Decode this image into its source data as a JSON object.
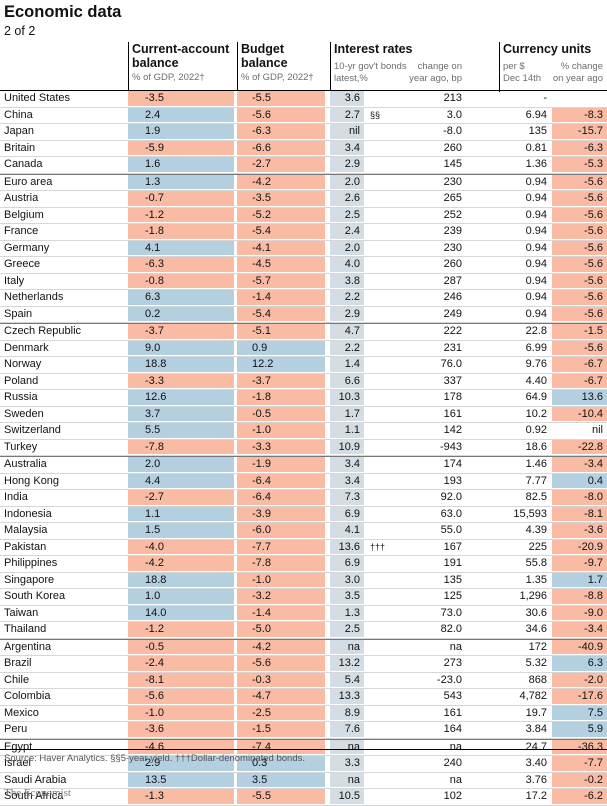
{
  "title": "Economic data",
  "subtitle": "2 of 2",
  "headers": {
    "current_account": "Current-account\nbalance",
    "current_account_sub": "% of GDP, 2022†",
    "budget": "Budget\nbalance",
    "budget_sub": "% of GDP, 2022†",
    "interest": "Interest rates",
    "interest_sub1": "10-yr gov't bonds",
    "interest_sub2": "latest,%",
    "interest_chg1": "change on",
    "interest_chg2": "year ago, bp",
    "currency": "Currency units",
    "currency_sub1": "per $",
    "currency_sub2": "Dec 14th",
    "currency_chg1": "% change",
    "currency_chg2": "on year ago"
  },
  "rows": [
    {
      "country": "United States",
      "ca": "-3.5",
      "bb": "-5.5",
      "ir": "3.6",
      "fn": "",
      "chg": "213",
      "fx": "-",
      "fxc": ""
    },
    {
      "country": "China",
      "ca": "2.4",
      "bb": "-5.6",
      "ir": "2.7",
      "fn": "§§",
      "chg": "3.0",
      "fx": "6.94",
      "fxc": "-8.3"
    },
    {
      "country": "Japan",
      "ca": "1.9",
      "bb": "-6.3",
      "ir": "nil",
      "fn": "",
      "chg": "-8.0",
      "fx": "135",
      "fxc": "-15.7"
    },
    {
      "country": "Britain",
      "ca": "-5.9",
      "bb": "-6.6",
      "ir": "3.4",
      "fn": "",
      "chg": "260",
      "fx": "0.81",
      "fxc": "-6.3"
    },
    {
      "country": "Canada",
      "ca": "1.6",
      "bb": "-2.7",
      "ir": "2.9",
      "fn": "",
      "chg": "145",
      "fx": "1.36",
      "fxc": "-5.3"
    },
    {
      "country": "Euro area",
      "ca": "1.3",
      "bb": "-4.2",
      "ir": "2.0",
      "fn": "",
      "chg": "230",
      "fx": "0.94",
      "fxc": "-5.6"
    },
    {
      "country": "Austria",
      "ca": "-0.7",
      "bb": "-3.5",
      "ir": "2.6",
      "fn": "",
      "chg": "265",
      "fx": "0.94",
      "fxc": "-5.6"
    },
    {
      "country": "Belgium",
      "ca": "-1.2",
      "bb": "-5.2",
      "ir": "2.5",
      "fn": "",
      "chg": "252",
      "fx": "0.94",
      "fxc": "-5.6"
    },
    {
      "country": "France",
      "ca": "-1.8",
      "bb": "-5.4",
      "ir": "2.4",
      "fn": "",
      "chg": "239",
      "fx": "0.94",
      "fxc": "-5.6"
    },
    {
      "country": "Germany",
      "ca": "4.1",
      "bb": "-4.1",
      "ir": "2.0",
      "fn": "",
      "chg": "230",
      "fx": "0.94",
      "fxc": "-5.6"
    },
    {
      "country": "Greece",
      "ca": "-6.3",
      "bb": "-4.5",
      "ir": "4.0",
      "fn": "",
      "chg": "260",
      "fx": "0.94",
      "fxc": "-5.6"
    },
    {
      "country": "Italy",
      "ca": "-0.8",
      "bb": "-5.7",
      "ir": "3.8",
      "fn": "",
      "chg": "287",
      "fx": "0.94",
      "fxc": "-5.6"
    },
    {
      "country": "Netherlands",
      "ca": "6.3",
      "bb": "-1.4",
      "ir": "2.2",
      "fn": "",
      "chg": "246",
      "fx": "0.94",
      "fxc": "-5.6"
    },
    {
      "country": "Spain",
      "ca": "0.2",
      "bb": "-5.4",
      "ir": "2.9",
      "fn": "",
      "chg": "249",
      "fx": "0.94",
      "fxc": "-5.6"
    },
    {
      "country": "Czech Republic",
      "ca": "-3.7",
      "bb": "-5.1",
      "ir": "4.7",
      "fn": "",
      "chg": "222",
      "fx": "22.8",
      "fxc": "-1.5"
    },
    {
      "country": "Denmark",
      "ca": "9.0",
      "bb": "0.9",
      "ir": "2.2",
      "fn": "",
      "chg": "231",
      "fx": "6.99",
      "fxc": "-5.6"
    },
    {
      "country": "Norway",
      "ca": "18.8",
      "bb": "12.2",
      "ir": "1.4",
      "fn": "",
      "chg": "76.0",
      "fx": "9.76",
      "fxc": "-6.7"
    },
    {
      "country": "Poland",
      "ca": "-3.3",
      "bb": "-3.7",
      "ir": "6.6",
      "fn": "",
      "chg": "337",
      "fx": "4.40",
      "fxc": "-6.7"
    },
    {
      "country": "Russia",
      "ca": "12.6",
      "bb": "-1.8",
      "ir": "10.3",
      "fn": "",
      "chg": "178",
      "fx": "64.9",
      "fxc": "13.6"
    },
    {
      "country": "Sweden",
      "ca": "3.7",
      "bb": "-0.5",
      "ir": "1.7",
      "fn": "",
      "chg": "161",
      "fx": "10.2",
      "fxc": "-10.4"
    },
    {
      "country": "Switzerland",
      "ca": "5.5",
      "bb": "-1.0",
      "ir": "1.1",
      "fn": "",
      "chg": "142",
      "fx": "0.92",
      "fxc": "nil"
    },
    {
      "country": "Turkey",
      "ca": "-7.8",
      "bb": "-3.3",
      "ir": "10.9",
      "fn": "",
      "chg": "-943",
      "fx": "18.6",
      "fxc": "-22.8"
    },
    {
      "country": "Australia",
      "ca": "2.0",
      "bb": "-1.9",
      "ir": "3.4",
      "fn": "",
      "chg": "174",
      "fx": "1.46",
      "fxc": "-3.4"
    },
    {
      "country": "Hong Kong",
      "ca": "4.4",
      "bb": "-6.4",
      "ir": "3.4",
      "fn": "",
      "chg": "193",
      "fx": "7.77",
      "fxc": "0.4"
    },
    {
      "country": "India",
      "ca": "-2.7",
      "bb": "-6.4",
      "ir": "7.3",
      "fn": "",
      "chg": "92.0",
      "fx": "82.5",
      "fxc": "-8.0"
    },
    {
      "country": "Indonesia",
      "ca": "1.1",
      "bb": "-3.9",
      "ir": "6.9",
      "fn": "",
      "chg": "63.0",
      "fx": "15,593",
      "fxc": "-8.1"
    },
    {
      "country": "Malaysia",
      "ca": "1.5",
      "bb": "-6.0",
      "ir": "4.1",
      "fn": "",
      "chg": "55.0",
      "fx": "4.39",
      "fxc": "-3.6"
    },
    {
      "country": "Pakistan",
      "ca": "-4.0",
      "bb": "-7.7",
      "ir": "13.6",
      "fn": "†††",
      "chg": "167",
      "fx": "225",
      "fxc": "-20.9"
    },
    {
      "country": "Philippines",
      "ca": "-4.2",
      "bb": "-7.8",
      "ir": "6.9",
      "fn": "",
      "chg": "191",
      "fx": "55.8",
      "fxc": "-9.7"
    },
    {
      "country": "Singapore",
      "ca": "18.8",
      "bb": "-1.0",
      "ir": "3.0",
      "fn": "",
      "chg": "135",
      "fx": "1.35",
      "fxc": "1.7"
    },
    {
      "country": "South Korea",
      "ca": "1.0",
      "bb": "-3.2",
      "ir": "3.5",
      "fn": "",
      "chg": "125",
      "fx": "1,296",
      "fxc": "-8.8"
    },
    {
      "country": "Taiwan",
      "ca": "14.0",
      "bb": "-1.4",
      "ir": "1.3",
      "fn": "",
      "chg": "73.0",
      "fx": "30.6",
      "fxc": "-9.0"
    },
    {
      "country": "Thailand",
      "ca": "-1.2",
      "bb": "-5.0",
      "ir": "2.5",
      "fn": "",
      "chg": "82.0",
      "fx": "34.6",
      "fxc": "-3.4"
    },
    {
      "country": "Argentina",
      "ca": "-0.5",
      "bb": "-4.2",
      "ir": "na",
      "fn": "",
      "chg": "na",
      "fx": "172",
      "fxc": "-40.9"
    },
    {
      "country": "Brazil",
      "ca": "-2.4",
      "bb": "-5.6",
      "ir": "13.2",
      "fn": "",
      "chg": "273",
      "fx": "5.32",
      "fxc": "6.3"
    },
    {
      "country": "Chile",
      "ca": "-8.1",
      "bb": "-0.3",
      "ir": "5.4",
      "fn": "",
      "chg": "-23.0",
      "fx": "868",
      "fxc": "-2.0"
    },
    {
      "country": "Colombia",
      "ca": "-5.6",
      "bb": "-4.7",
      "ir": "13.3",
      "fn": "",
      "chg": "543",
      "fx": "4,782",
      "fxc": "-17.6"
    },
    {
      "country": "Mexico",
      "ca": "-1.0",
      "bb": "-2.5",
      "ir": "8.9",
      "fn": "",
      "chg": "161",
      "fx": "19.7",
      "fxc": "7.5"
    },
    {
      "country": "Peru",
      "ca": "-3.6",
      "bb": "-1.5",
      "ir": "7.6",
      "fn": "",
      "chg": "164",
      "fx": "3.84",
      "fxc": "5.9"
    },
    {
      "country": "Egypt",
      "ca": "-4.6",
      "bb": "-7.4",
      "ir": "na",
      "fn": "",
      "chg": "na",
      "fx": "24.7",
      "fxc": "-36.3"
    },
    {
      "country": "Israel",
      "ca": "2.9",
      "bb": "0.3",
      "ir": "3.3",
      "fn": "",
      "chg": "240",
      "fx": "3.40",
      "fxc": "-7.7"
    },
    {
      "country": "Saudi Arabia",
      "ca": "13.5",
      "bb": "3.5",
      "ir": "na",
      "fn": "",
      "chg": "na",
      "fx": "3.76",
      "fxc": "-0.2"
    },
    {
      "country": "South Africa",
      "ca": "-1.3",
      "bb": "-5.5",
      "ir": "10.5",
      "fn": "",
      "chg": "102",
      "fx": "17.2",
      "fxc": "-6.2"
    }
  ],
  "source": "Source: Haver Analytics.  §§5-year yield. †††Dollar-denominated bonds.",
  "brand": "The Economist",
  "colors": {
    "positive": "#b3cfe0",
    "negative": "#f9bba4",
    "rate": "#d5dde4"
  }
}
